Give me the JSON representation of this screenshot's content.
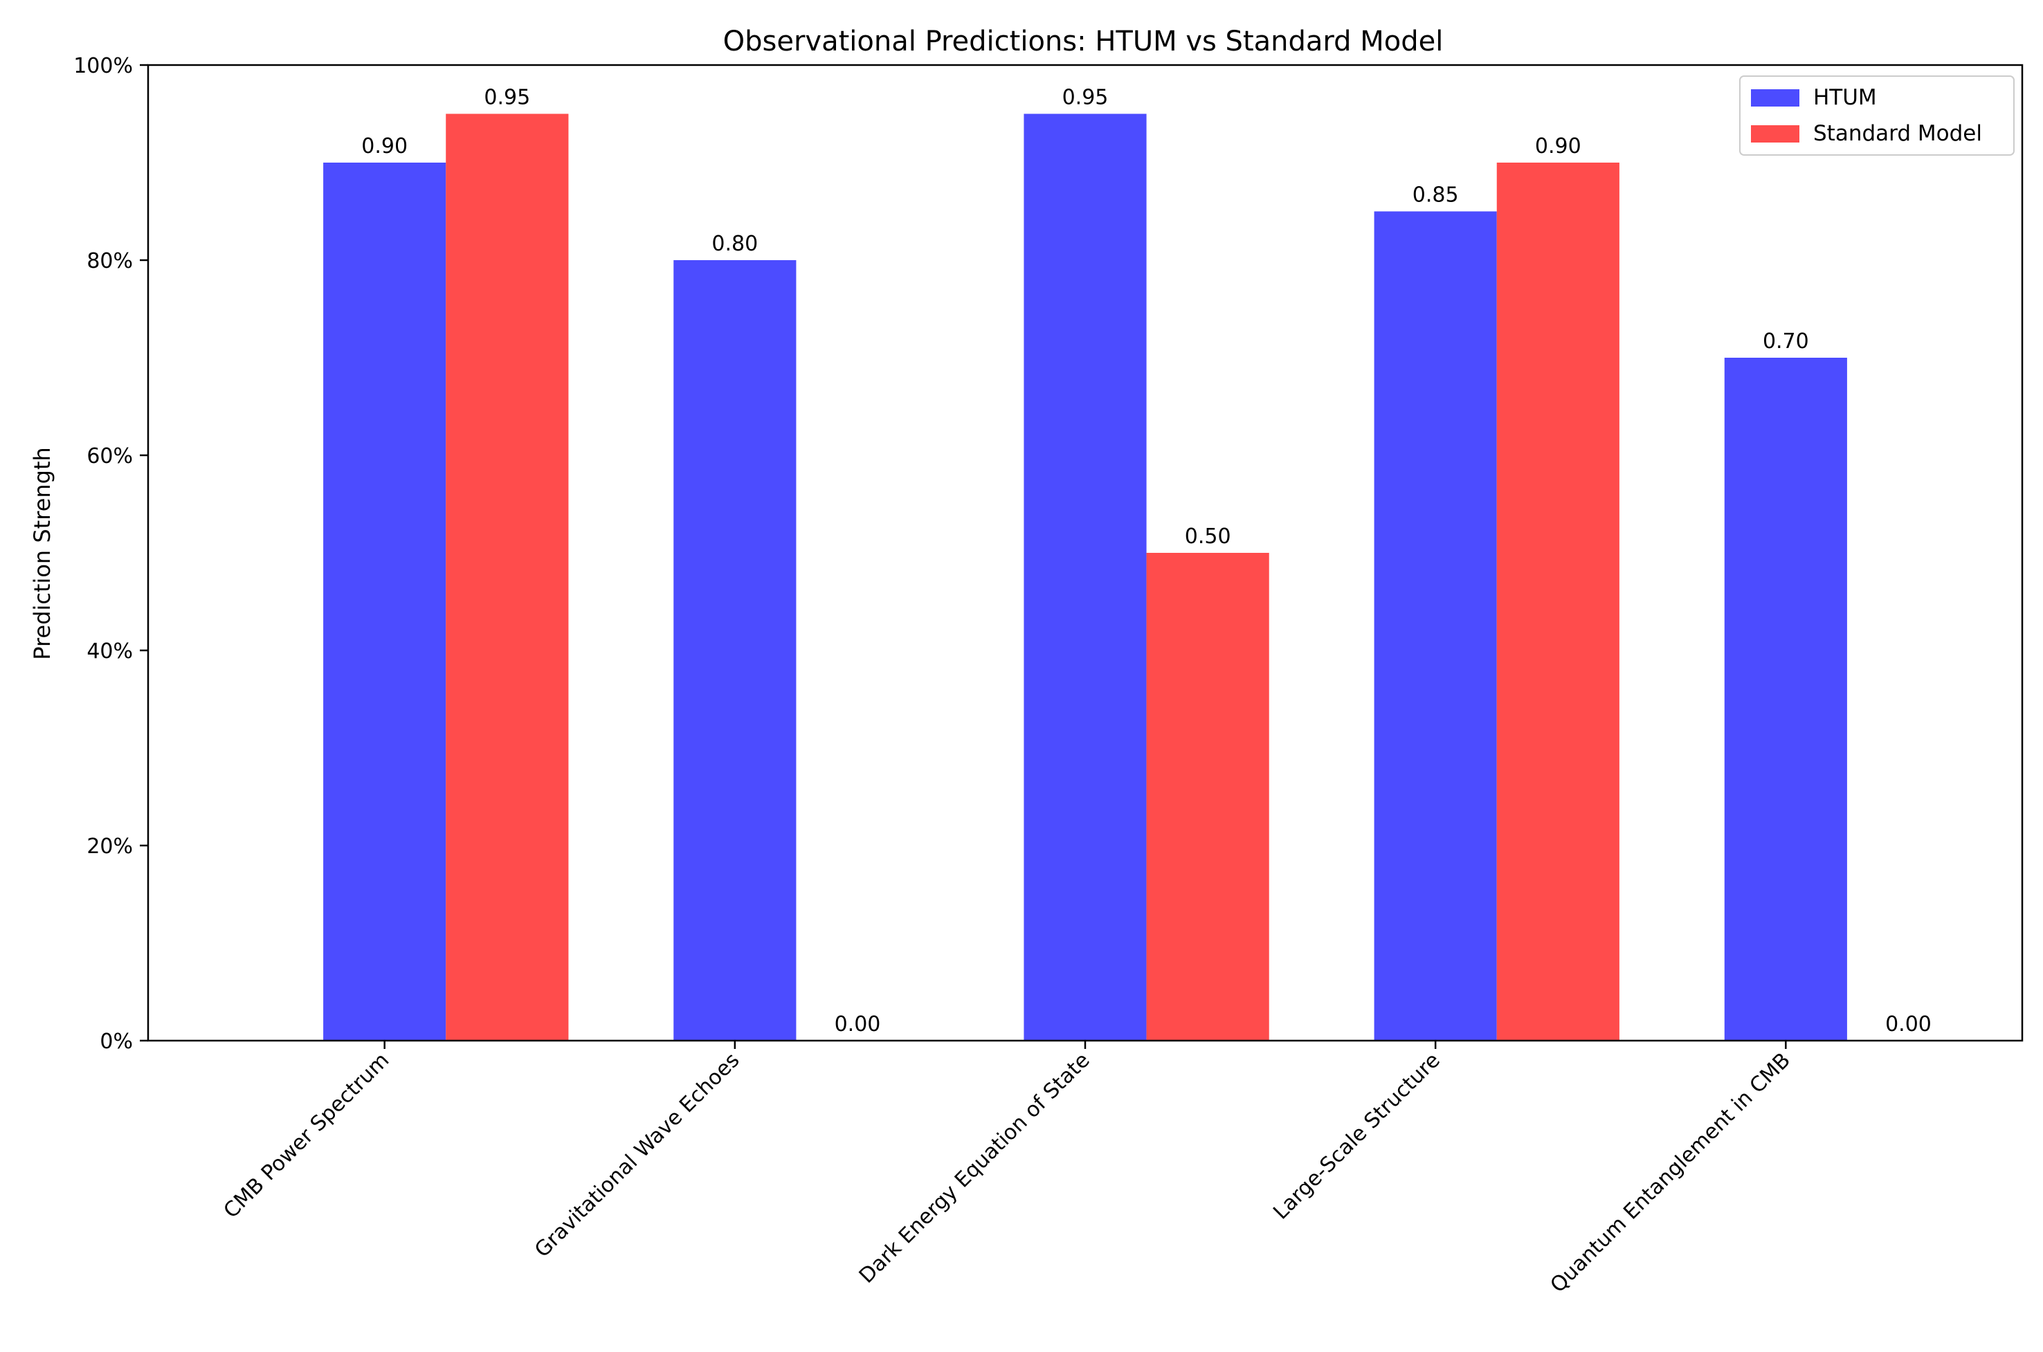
{
  "chart_data": {
    "type": "bar",
    "title": "Observational Predictions: HTUM vs Standard Model",
    "xlabel": "",
    "ylabel": "Prediction Strength",
    "categories": [
      "CMB Power Spectrum",
      "Gravitational Wave Echoes",
      "Dark Energy Equation of State",
      "Large-Scale Structure",
      "Quantum Entanglement in CMB"
    ],
    "series": [
      {
        "name": "HTUM",
        "color": "#4c4cff",
        "values": [
          0.9,
          0.8,
          0.95,
          0.85,
          0.7
        ],
        "labels": [
          "0.90",
          "0.80",
          "0.95",
          "0.85",
          "0.70"
        ]
      },
      {
        "name": "Standard Model",
        "color": "#ff4c4c",
        "values": [
          0.95,
          0.0,
          0.5,
          0.9,
          0.0
        ],
        "labels": [
          "0.95",
          "0.00",
          "0.50",
          "0.90",
          "0.00"
        ]
      }
    ],
    "ylim": [
      0,
      1
    ],
    "y_ticks": [
      {
        "value": 0.0,
        "label": "0%"
      },
      {
        "value": 0.2,
        "label": "20%"
      },
      {
        "value": 0.4,
        "label": "40%"
      },
      {
        "value": 0.6,
        "label": "60%"
      },
      {
        "value": 0.8,
        "label": "80%"
      },
      {
        "value": 1.0,
        "label": "100%"
      }
    ],
    "grid": false,
    "legend_position": "top-right"
  }
}
